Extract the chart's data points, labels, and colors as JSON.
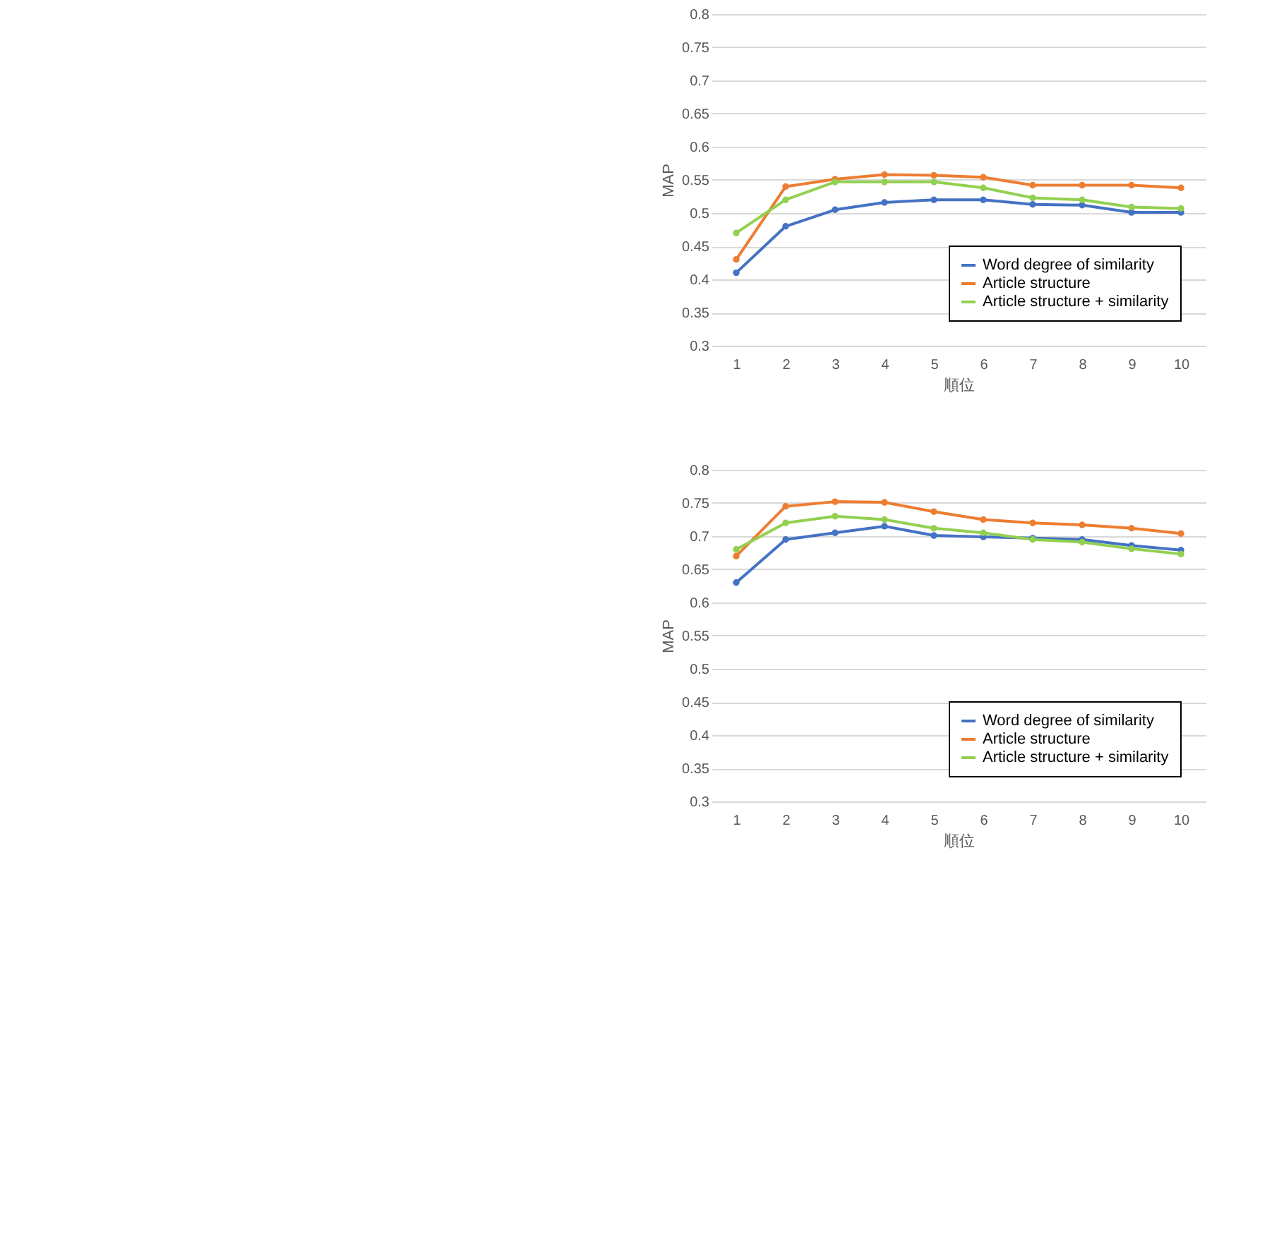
{
  "chart_data": [
    {
      "type": "line",
      "xlabel": "順位",
      "ylabel": "MAP",
      "categories": [
        "1",
        "2",
        "3",
        "4",
        "5",
        "6",
        "7",
        "8",
        "9",
        "10"
      ],
      "ylim": [
        0.3,
        0.8
      ],
      "yticks": [
        0.3,
        0.35,
        0.4,
        0.45,
        0.5,
        0.55,
        0.6,
        0.65,
        0.7,
        0.75,
        0.8
      ],
      "grid": "y",
      "marker": "circle",
      "legend": "bottom right",
      "series": [
        {
          "name": "Word degree of similarity",
          "color": "#4472c4",
          "values": [
            0.41,
            0.48,
            0.505,
            0.516,
            0.52,
            0.52,
            0.513,
            0.512,
            0.501,
            0.501
          ]
        },
        {
          "name": "Article structure",
          "color": "#ed7d31",
          "values": [
            0.43,
            0.54,
            0.551,
            0.558,
            0.557,
            0.554,
            0.542,
            0.542,
            0.542,
            0.538
          ]
        },
        {
          "name": "Article structure + similarity",
          "color": "#92d050",
          "values": [
            0.47,
            0.52,
            0.547,
            0.547,
            0.547,
            0.538,
            0.523,
            0.52,
            0.509,
            0.507
          ]
        }
      ]
    },
    {
      "type": "line",
      "xlabel": "順位",
      "ylabel": "MAP",
      "categories": [
        "1",
        "2",
        "3",
        "4",
        "5",
        "6",
        "7",
        "8",
        "9",
        "10"
      ],
      "ylim": [
        0.3,
        0.8
      ],
      "yticks": [
        0.3,
        0.35,
        0.4,
        0.45,
        0.5,
        0.55,
        0.6,
        0.65,
        0.7,
        0.75,
        0.8
      ],
      "grid": "y",
      "marker": "circle",
      "legend": "bottom right",
      "series": [
        {
          "name": "Word degree of similarity",
          "color": "#4472c4",
          "values": [
            0.63,
            0.695,
            0.705,
            0.715,
            0.701,
            0.699,
            0.697,
            0.695,
            0.686,
            0.679
          ]
        },
        {
          "name": "Article structure",
          "color": "#ed7d31",
          "values": [
            0.67,
            0.745,
            0.752,
            0.751,
            0.737,
            0.725,
            0.72,
            0.717,
            0.712,
            0.704
          ]
        },
        {
          "name": "Article structure + similarity",
          "color": "#92d050",
          "values": [
            0.68,
            0.72,
            0.73,
            0.725,
            0.712,
            0.705,
            0.695,
            0.691,
            0.681,
            0.673
          ]
        }
      ]
    }
  ]
}
